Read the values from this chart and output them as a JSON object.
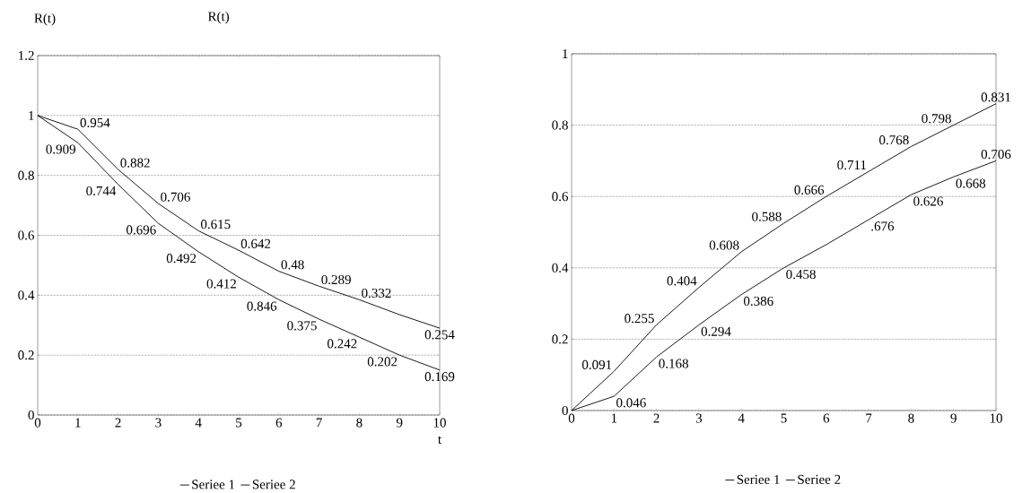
{
  "chart_data": [
    {
      "type": "line",
      "title": "R(t)",
      "ylabel": "R(t)",
      "xlabel": "t",
      "x": [
        0,
        1,
        2,
        3,
        4,
        5,
        6,
        7,
        8,
        9,
        10
      ],
      "xlim": [
        0,
        10
      ],
      "xticks": [
        0,
        1,
        2,
        3,
        4,
        5,
        6,
        7,
        8,
        9,
        10
      ],
      "ylim": [
        0,
        1.2
      ],
      "yticks": [
        0,
        0.2,
        0.4,
        0.6,
        0.8,
        1,
        1.2
      ],
      "grid": "y",
      "legend": "bottom",
      "series": [
        {
          "name": "Seriee 1",
          "color": "#000000",
          "values": [
            1,
            0.954,
            0.82,
            0.706,
            0.615,
            0.55,
            0.48,
            0.43,
            0.385,
            0.335,
            0.29
          ]
        },
        {
          "name": "Seriee 2",
          "color": "#000000",
          "values": [
            1,
            0.909,
            0.77,
            0.64,
            0.545,
            0.46,
            0.385,
            0.32,
            0.26,
            0.2,
            0.15
          ]
        }
      ],
      "annotations": [
        {
          "text": "0.954",
          "x": 1,
          "y": 0.954
        },
        {
          "text": "0.882",
          "x": 2,
          "y": 0.82
        },
        {
          "text": "0.706",
          "x": 3,
          "y": 0.706
        },
        {
          "text": "0.615",
          "x": 4,
          "y": 0.615
        },
        {
          "text": "0.642",
          "x": 5,
          "y": 0.55
        },
        {
          "text": "0.48",
          "x": 6,
          "y": 0.48
        },
        {
          "text": "0.289",
          "x": 7,
          "y": 0.43
        },
        {
          "text": "0.332",
          "x": 8,
          "y": 0.385
        },
        {
          "text": "0.254",
          "x": 10,
          "y": 0.29
        },
        {
          "text": "0.909",
          "x": 1,
          "y": 0.909
        },
        {
          "text": "0.744",
          "x": 2,
          "y": 0.77
        },
        {
          "text": "0.696",
          "x": 3,
          "y": 0.64
        },
        {
          "text": "0.492",
          "x": 4,
          "y": 0.545
        },
        {
          "text": "0.412",
          "x": 5,
          "y": 0.46
        },
        {
          "text": "0.846",
          "x": 6,
          "y": 0.385
        },
        {
          "text": "0.375",
          "x": 7,
          "y": 0.32
        },
        {
          "text": "0.242",
          "x": 8,
          "y": 0.26
        },
        {
          "text": "0.202",
          "x": 9,
          "y": 0.2
        },
        {
          "text": "0.169",
          "x": 10,
          "y": 0.15
        }
      ]
    },
    {
      "type": "line",
      "x": [
        0,
        1,
        2,
        3,
        4,
        5,
        6,
        7,
        8,
        9,
        10
      ],
      "xlim": [
        0,
        10
      ],
      "xticks": [
        0,
        1,
        2,
        3,
        4,
        5,
        6,
        7,
        8,
        9,
        10
      ],
      "ylim": [
        0,
        1
      ],
      "yticks": [
        0,
        0.2,
        0.4,
        0.6,
        0.8,
        1
      ],
      "grid": "y",
      "legend": "bottom",
      "series": [
        {
          "name": "Seriee 1",
          "color": "#000000",
          "values": [
            0,
            0.11,
            0.24,
            0.345,
            0.445,
            0.525,
            0.6,
            0.67,
            0.74,
            0.8,
            0.86
          ]
        },
        {
          "name": "Seriee 2",
          "color": "#000000",
          "values": [
            0,
            0.04,
            0.15,
            0.24,
            0.325,
            0.4,
            0.465,
            0.535,
            0.605,
            0.655,
            0.7
          ]
        }
      ],
      "annotations": [
        {
          "text": "0.091",
          "x": 1,
          "y": 0.11
        },
        {
          "text": "0.255",
          "x": 2,
          "y": 0.24
        },
        {
          "text": "0.404",
          "x": 3,
          "y": 0.345
        },
        {
          "text": "0.608",
          "x": 4,
          "y": 0.445
        },
        {
          "text": "0.588",
          "x": 5,
          "y": 0.525
        },
        {
          "text": "0.666",
          "x": 6,
          "y": 0.6
        },
        {
          "text": "0.711",
          "x": 7,
          "y": 0.67
        },
        {
          "text": "0.768",
          "x": 8,
          "y": 0.74
        },
        {
          "text": "0.798",
          "x": 9,
          "y": 0.8
        },
        {
          "text": "0.831",
          "x": 10,
          "y": 0.86
        },
        {
          "text": "0.046",
          "x": 1,
          "y": 0.04
        },
        {
          "text": "0.168",
          "x": 2,
          "y": 0.15
        },
        {
          "text": "0.294",
          "x": 3,
          "y": 0.24
        },
        {
          "text": "0.386",
          "x": 4,
          "y": 0.325
        },
        {
          "text": "0.458",
          "x": 5,
          "y": 0.4
        },
        {
          "text": ".676",
          "x": 7,
          "y": 0.535
        },
        {
          "text": "0.626",
          "x": 8,
          "y": 0.605
        },
        {
          "text": "0.668",
          "x": 9,
          "y": 0.655
        },
        {
          "text": "0.706",
          "x": 10,
          "y": 0.7
        }
      ]
    }
  ]
}
